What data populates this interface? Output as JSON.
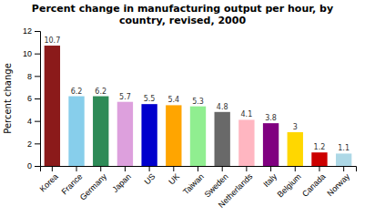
{
  "chart_data": {
    "type": "bar",
    "title": "Percent change in manufacturing output per hour, by\ncountry, revised, 2000",
    "ylabel": "Percent change",
    "categories": [
      "Korea",
      "France",
      "Germany",
      "Japan",
      "US",
      "UK",
      "Taiwan",
      "Sweden",
      "Netherlands",
      "Italy",
      "Belgium",
      "Canada",
      "Norway"
    ],
    "values": [
      10.7,
      6.2,
      6.2,
      5.7,
      5.5,
      5.4,
      5.3,
      4.8,
      4.1,
      3.8,
      3.0,
      1.2,
      1.1
    ],
    "colors": [
      "#8B1A1A",
      "#87CEEB",
      "#2E8B57",
      "#DDA0DD",
      "#0000CD",
      "#FFA500",
      "#90EE90",
      "#696969",
      "#FFB6C1",
      "#800080",
      "#FFD700",
      "#CC0000",
      "#ADD8E6"
    ],
    "ylim": [
      0,
      12
    ],
    "yticks": [
      0,
      2,
      4,
      6,
      8,
      10,
      12
    ],
    "grid": false,
    "data_labels": true
  }
}
